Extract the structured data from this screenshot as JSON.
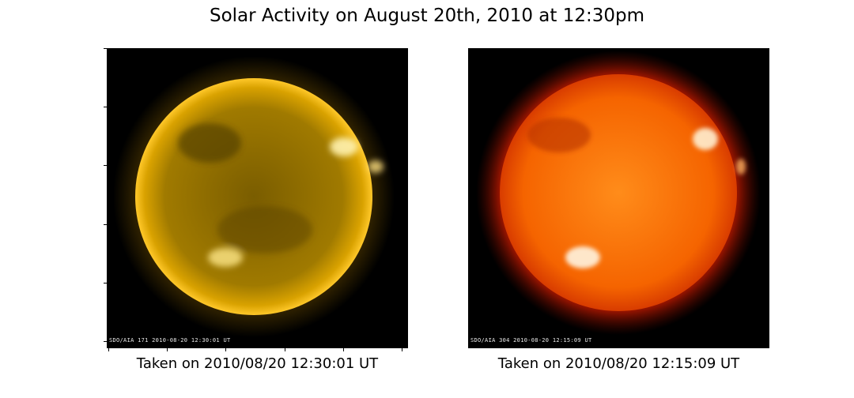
{
  "figure": {
    "title": "Solar Activity on August 20th, 2010 at 12:30pm"
  },
  "panels": [
    {
      "caption": "Taken on 2010/08/20 12:30:01 UT",
      "stamp": "SDO/AIA 171  2010-08-20 12:30:01 UT",
      "colors": {
        "core": "#8a6a00",
        "mid": "#b58900",
        "rim": "#ffc21a",
        "corona": "#ffb400"
      }
    },
    {
      "caption": "Taken on 2010/08/20 12:15:09 UT",
      "stamp": "SDO/AIA 304  2010-08-20 12:15:09 UT",
      "colors": {
        "core": "#ff7a10",
        "mid": "#f25a00",
        "rim": "#c22a00",
        "corona": "#8a0f00"
      }
    }
  ]
}
